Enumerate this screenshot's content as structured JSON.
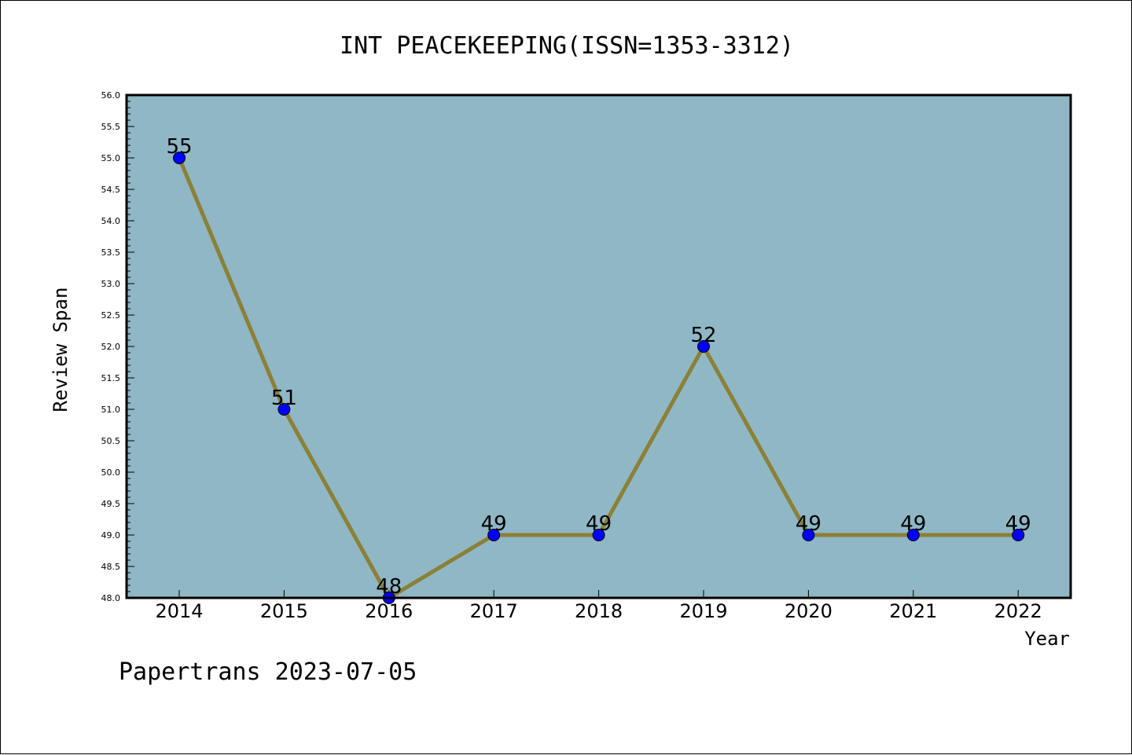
{
  "chart_data": {
    "type": "line",
    "title": "INT PEACEKEEPING(ISSN=1353-3312)",
    "xlabel": "Year",
    "ylabel": "Review Span",
    "x": [
      "2014",
      "2015",
      "2016",
      "2017",
      "2018",
      "2019",
      "2020",
      "2021",
      "2022"
    ],
    "values": [
      55,
      51,
      48,
      49,
      49,
      52,
      49,
      49,
      49
    ],
    "data_labels": [
      "55",
      "51",
      "48",
      "49",
      "49",
      "52",
      "49",
      "49",
      "49"
    ],
    "ylim": [
      48.0,
      56.0
    ],
    "yticks": [
      "48.0",
      "48.5",
      "49.0",
      "49.5",
      "50.0",
      "50.5",
      "51.0",
      "51.5",
      "52.0",
      "52.5",
      "53.0",
      "53.5",
      "54.0",
      "54.5",
      "55.0",
      "55.5",
      "56.0"
    ],
    "grid": false,
    "line_color": "#8b8036",
    "marker_color": "#0000ff",
    "plot_background": "#8fb7c5"
  },
  "footer": "Papertrans 2023-07-05"
}
